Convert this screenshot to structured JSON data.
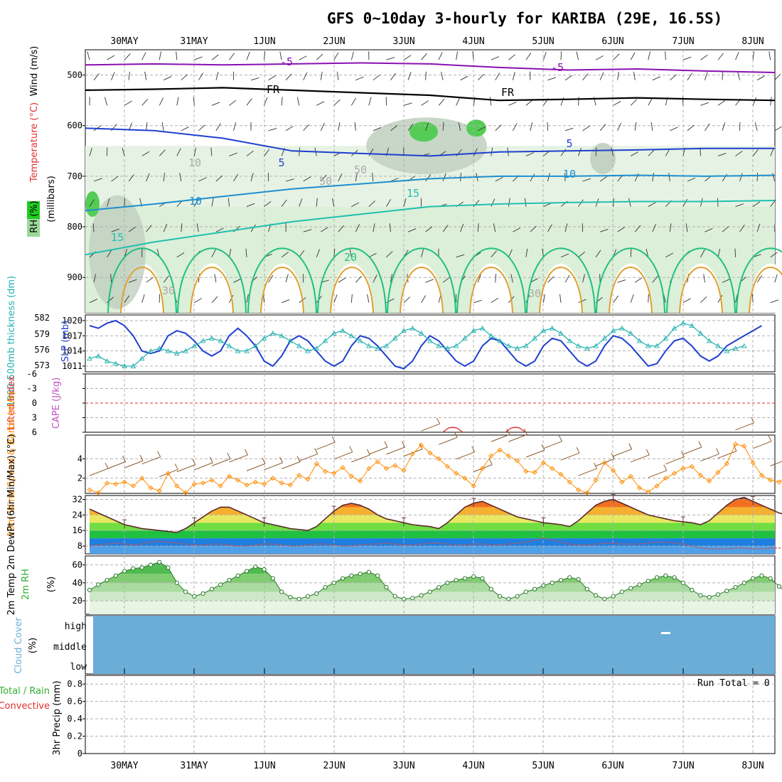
{
  "title": "GFS 0~10day 3-hourly for KARIBA (29E, 16.5S)",
  "run_total": "Run Total = 0",
  "colors": {
    "slp": "#1f3fd0",
    "thickness": "#20b0b0",
    "wind": "#ff8c00",
    "lifted": "#e03030",
    "cape": "#c050c0",
    "rh": "#30b030",
    "cloud": "#6aaed8",
    "grid": "#b0b0b0",
    "temp5": "#8a10b0",
    "temp10": "#1e8fd0",
    "temp15": "#20c0b0",
    "temp20": "#20c080"
  },
  "chart_data": [
    {
      "type": "contour",
      "panel": "upper-air",
      "ylabel_parts": [
        "Wind",
        "(m/s)",
        "Temperature",
        "(°C)",
        "RH",
        "(%)",
        "(millibars)"
      ],
      "y_ticks": [
        "500",
        "600",
        "700",
        "800",
        "900"
      ],
      "ylim": [
        970,
        450
      ],
      "contour_labels": [
        "-5",
        "-5",
        "FR",
        "FR",
        "5",
        "5",
        "10",
        "10",
        "15",
        "15",
        "20",
        "10",
        "50",
        "50",
        "30",
        "30"
      ],
      "isotherms": [
        {
          "label": "-5",
          "pressure": [
            480,
            478,
            480,
            478,
            476,
            478,
            485,
            490,
            488,
            492,
            495
          ]
        },
        {
          "label": "0",
          "pressure": [
            530,
            528,
            525,
            530,
            535,
            540,
            550,
            548,
            545,
            548,
            550
          ]
        },
        {
          "label": "5",
          "pressure": [
            605,
            610,
            625,
            650,
            655,
            660,
            652,
            650,
            648,
            645,
            645
          ]
        },
        {
          "label": "10",
          "pressure": [
            768,
            755,
            740,
            725,
            715,
            705,
            700,
            700,
            698,
            700,
            698
          ]
        },
        {
          "label": "15",
          "pressure": [
            855,
            830,
            810,
            790,
            775,
            760,
            755,
            752,
            750,
            750,
            748
          ]
        }
      ]
    },
    {
      "type": "line",
      "panel": "slp-thickness",
      "ylabel_left": "1000-500mb thickness (dm)",
      "ylabel_right": "SLP (mb)",
      "y_ticks_left": [
        "582",
        "579",
        "576",
        "573"
      ],
      "y_ticks_right": [
        "1020",
        "1017",
        "1014",
        "1011"
      ],
      "slp": [
        1019,
        1018.5,
        1019.5,
        1020,
        1019,
        1017,
        1014,
        1013.5,
        1014,
        1017,
        1018,
        1017.5,
        1016,
        1014,
        1013,
        1014,
        1017,
        1018.5,
        1017,
        1015,
        1012,
        1011,
        1013,
        1016,
        1017,
        1016,
        1014,
        1012,
        1011,
        1012,
        1015,
        1017,
        1016.5,
        1015,
        1013,
        1011,
        1010.5,
        1012,
        1015,
        1017,
        1016,
        1014,
        1012,
        1011,
        1012,
        1015,
        1016.5,
        1016,
        1014,
        1012,
        1011,
        1012,
        1015,
        1016.5,
        1016,
        1014,
        1012,
        1011,
        1012,
        1015,
        1017,
        1016.5,
        1015,
        1013,
        1011,
        1011.5,
        1014,
        1016,
        1016.5,
        1015,
        1013,
        1012,
        1013,
        1015,
        1016,
        1017,
        1018,
        1019
      ],
      "thickness": [
        574.5,
        575,
        574,
        573.5,
        573,
        573,
        574.5,
        576,
        576.5,
        576,
        575.5,
        576,
        577,
        578,
        578.5,
        578,
        577,
        576,
        576,
        577,
        578.5,
        579.5,
        579,
        578,
        577,
        576,
        576.5,
        578,
        579.5,
        580,
        579,
        578,
        577,
        576.5,
        577,
        578.5,
        580,
        580.5,
        579.5,
        578,
        577,
        576.5,
        577,
        578.5,
        580,
        580.5,
        579,
        578,
        577,
        576.5,
        577,
        578.5,
        580,
        580.5,
        579.5,
        578,
        577,
        576.5,
        577,
        578.5,
        580,
        580.5,
        579.5,
        578,
        577,
        577,
        578.5,
        580.5,
        581.5,
        581,
        579.5,
        578,
        577,
        576,
        576.5,
        577
      ]
    },
    {
      "type": "line",
      "panel": "stability",
      "ylabel_left": "Lifted Index",
      "ylabel_right": "CAPE (J/kg)",
      "y_ticks": [
        "-6",
        "-3",
        "0",
        "3",
        "6"
      ],
      "cape_peaks": [
        {
          "x": 4.6,
          "value": 6
        },
        {
          "x": 5.5,
          "value": 6
        }
      ]
    },
    {
      "type": "line",
      "panel": "wind10m",
      "ylabel": "10m Wind Speed & Barbs (m/s)",
      "y_ticks": [
        "4",
        "2"
      ],
      "ylim": [
        0,
        6
      ],
      "values": [
        0.8,
        0.5,
        1.5,
        1.4,
        1.6,
        1.2,
        2.0,
        1.0,
        0.7,
        2.5,
        1.2,
        0.5,
        1.4,
        1.5,
        1.8,
        1.2,
        2.2,
        1.8,
        1.3,
        1.6,
        1.4,
        2.0,
        1.5,
        1.3,
        2.3,
        1.9,
        3.5,
        2.7,
        2.5,
        3.1,
        2.2,
        1.7,
        3.0,
        3.7,
        3.0,
        3.3,
        2.8,
        4.5,
        5.4,
        4.6,
        4.0,
        3.2,
        2.5,
        2.0,
        1.2,
        3.0,
        4.3,
        4.9,
        4.3,
        3.8,
        2.7,
        2.6,
        3.6,
        3.0,
        2.4,
        1.6,
        0.8,
        0.5,
        1.8,
        3.6,
        2.8,
        1.6,
        2.2,
        1.0,
        0.6,
        1.2,
        2.0,
        2.5,
        3.0,
        3.2,
        2.3,
        1.7,
        2.6,
        3.5,
        5.5,
        5.3,
        3.6,
        2.3,
        1.8,
        1.6,
        2.3,
        4.0,
        4.5,
        3.2,
        1.8,
        0.6,
        0.8,
        1.2,
        0.8,
        2.2
      ]
    },
    {
      "type": "area",
      "panel": "temp2m",
      "ylabel": "2m Temp 2m DewPt (6hr Min/Max) (°C)",
      "y_ticks": [
        "32",
        "24",
        "16",
        "8"
      ],
      "ylim": [
        4,
        34
      ],
      "temp": [
        27,
        25,
        23,
        21,
        19,
        18,
        17,
        16.5,
        16,
        15.5,
        15,
        17,
        20,
        23,
        26,
        28,
        28,
        26,
        24,
        22,
        20,
        19,
        18,
        17,
        16.5,
        16,
        18,
        22,
        26,
        29,
        30,
        29,
        27,
        24,
        22,
        21,
        20,
        19,
        18.5,
        18,
        17,
        20,
        24,
        28,
        30,
        31,
        29,
        27,
        25,
        23,
        22,
        21,
        20,
        19.5,
        19,
        18,
        21,
        25,
        29,
        31,
        32,
        30,
        28,
        26,
        24,
        23,
        22,
        21,
        20.5,
        20,
        19,
        21,
        25,
        29,
        32,
        33,
        31,
        29,
        27,
        25,
        24,
        23,
        22,
        21,
        20.5,
        19.5,
        18.5,
        20,
        23
      ],
      "dewpt": [
        8,
        8.5,
        9,
        9.5,
        9,
        8.5,
        9,
        10,
        10.5,
        10,
        9.5,
        9,
        8.5,
        8.5,
        9,
        9,
        8.5,
        8,
        8,
        8.5,
        9,
        9,
        8.5,
        8,
        8,
        8.5,
        9,
        9,
        8.5,
        8,
        8,
        8.5,
        9,
        9,
        9.5,
        9,
        8.5,
        8.5,
        9,
        9.5,
        9.5,
        9,
        8.5,
        8.5,
        9,
        9,
        8.5,
        8.5,
        9,
        9.5,
        10,
        11,
        12,
        11,
        10,
        9,
        8.5,
        8.5,
        9,
        9.5,
        9.5,
        9,
        9,
        9,
        9.5,
        10,
        10,
        9.5,
        9,
        8,
        7,
        6.5,
        6.5,
        6.5,
        7,
        7,
        6.5,
        6.5,
        7,
        7,
        6.5,
        6.5,
        6.5,
        7,
        7,
        6.5,
        6.5,
        6.5,
        6.5
      ]
    },
    {
      "type": "area",
      "panel": "rh2m",
      "ylabel": "2m RH (%)",
      "y_ticks": [
        "60",
        "40",
        "20"
      ],
      "ylim": [
        5,
        70
      ],
      "values": [
        32,
        38,
        43,
        48,
        53,
        56,
        57,
        60,
        63,
        57,
        40,
        30,
        25,
        28,
        33,
        38,
        43,
        48,
        53,
        58,
        55,
        45,
        30,
        24,
        22,
        25,
        28,
        35,
        40,
        45,
        48,
        50,
        52,
        48,
        35,
        25,
        22,
        23,
        26,
        30,
        35,
        40,
        43,
        45,
        47,
        45,
        33,
        25,
        22,
        25,
        30,
        33,
        37,
        40,
        43,
        46,
        44,
        33,
        26,
        22,
        25,
        30,
        34,
        38,
        42,
        46,
        48,
        46,
        40,
        32,
        26,
        24,
        27,
        31,
        35,
        40,
        45,
        48,
        45,
        36,
        28,
        22,
        20,
        23,
        28,
        32,
        36,
        40,
        43
      ]
    },
    {
      "type": "bar",
      "panel": "cloud",
      "ylabel": "Cloud Cover (%)",
      "y_ticks": [
        "high",
        "middle",
        "low"
      ]
    },
    {
      "type": "bar",
      "panel": "precip",
      "ylabel_left": "Total / Rain",
      "ylabel_left2": "Convective",
      "ylabel": "3hr Precip (mm)",
      "y_ticks": [
        "0.8",
        "0.6",
        "0.4",
        "0.2",
        "0"
      ],
      "ylim": [
        0,
        0.9
      ],
      "values": []
    }
  ],
  "x_axis": {
    "days": [
      "30MAY",
      "31MAY",
      "1JUN",
      "2JUN",
      "3JUN",
      "4JUN",
      "5JUN",
      "6JUN",
      "7JUN",
      "8JUN"
    ]
  }
}
